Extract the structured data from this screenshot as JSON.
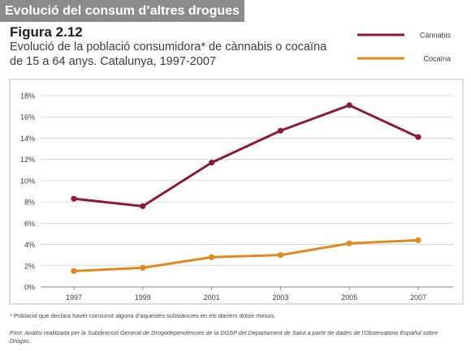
{
  "header": {
    "section_title": "Evolució del consum d’altres drogues",
    "figure_label": "Figura 2.12",
    "subtitle": "Evolució de la població consumidora* de cànnabis o cocaïna de 15 a 64 anys. Catalunya, 1997-2007"
  },
  "notes": {
    "footnote": "* Població que declara haver consumit alguna d’aquestes substàncies en els darrers dotze mesos.",
    "source": "Font: Anàlisi realitzada per la Subdirecció General de Drogodependències de la DGSP del Departament de Salut a partir de dades de l’Observatorio Español sobre Drogas."
  },
  "colors": {
    "cannabis": "#8b1a3c",
    "cocaina": "#df8a1c",
    "grid": "#d0d0d0",
    "axis": "#8a8a8a",
    "frame": "#bcbcbc"
  },
  "chart_data": {
    "type": "line",
    "title": "",
    "xlabel": "",
    "ylabel": "",
    "x": [
      "1997",
      "1999",
      "2001",
      "2003",
      "2005",
      "2007"
    ],
    "ylim": [
      0,
      18
    ],
    "ytick_step": 2,
    "ytick_labels": [
      "0%",
      "2%",
      "4%",
      "6%",
      "8%",
      "10%",
      "12%",
      "14%",
      "16%",
      "18%"
    ],
    "grid": true,
    "legend_position": "top-right",
    "series": [
      {
        "name": "Cànnabis",
        "color": "#8b1a3c",
        "values": [
          8.3,
          7.6,
          11.7,
          14.7,
          17.1,
          14.1
        ]
      },
      {
        "name": "Cocaïna",
        "color": "#df8a1c",
        "values": [
          1.5,
          1.8,
          2.8,
          3.0,
          4.1,
          4.4
        ]
      }
    ]
  }
}
